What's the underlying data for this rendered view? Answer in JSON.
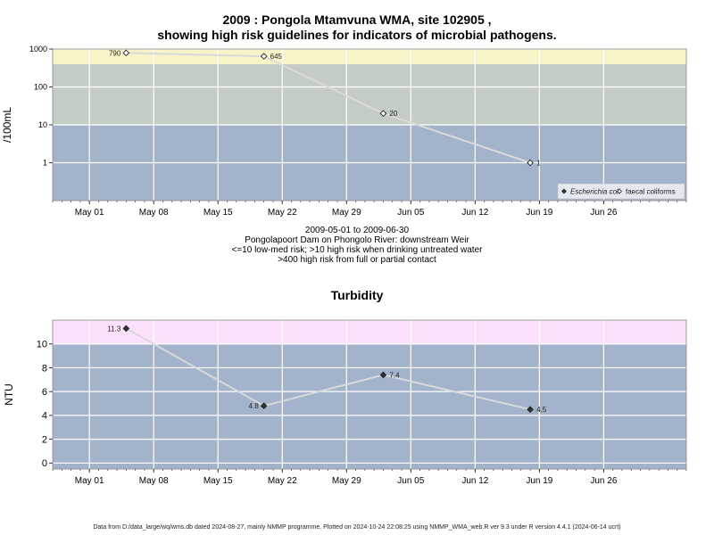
{
  "chart_data": [
    {
      "type": "line",
      "title_line1": "2009 : Pongola Mtamvuna WMA, site 102905 ,",
      "title_line2": "showing high risk guidelines for indicators of microbial pathogens.",
      "ylabel": "/100mL",
      "yscale": "log",
      "ylim": [
        0.1,
        1000
      ],
      "yticks": [
        1,
        10,
        100,
        1000
      ],
      "yticklabels": [
        "1",
        "10",
        "100",
        "1000"
      ],
      "xlim": [
        "2009-04-27",
        "2009-07-05"
      ],
      "xticks": [
        "2009-05-01",
        "2009-05-08",
        "2009-05-15",
        "2009-05-22",
        "2009-05-29",
        "2009-06-05",
        "2009-06-12",
        "2009-06-19",
        "2009-06-26"
      ],
      "xticklabels": [
        "May 01",
        "May 08",
        "May 15",
        "May 22",
        "May 29",
        "Jun 05",
        "Jun 12",
        "Jun 19",
        "Jun 26"
      ],
      "bands": [
        {
          "from": 0.1,
          "to": 10,
          "color": "#a3b3cc"
        },
        {
          "from": 10,
          "to": 400,
          "color": "#c4cdc4"
        },
        {
          "from": 400,
          "to": 1000,
          "color": "#f8f4c8"
        }
      ],
      "grid": true,
      "legend_position": "bottom-right",
      "series": [
        {
          "name": "faecal coliforms",
          "marker": "open-diamond",
          "x": [
            "2009-05-05",
            "2009-05-20",
            "2009-06-02",
            "2009-06-18"
          ],
          "values": [
            790,
            645,
            20,
            1
          ],
          "labels": [
            "790",
            "645",
            "20",
            "1"
          ]
        }
      ],
      "legend": [
        {
          "name": "Escherichia coli",
          "marker": "filled-diamond",
          "italic": true
        },
        {
          "name": "faecal coliforms",
          "marker": "open-diamond",
          "italic": false
        }
      ]
    },
    {
      "type": "line",
      "title": "Turbidity",
      "ylabel": "NTU",
      "yscale": "linear",
      "ylim": [
        -0.5,
        12
      ],
      "yticks": [
        0,
        2,
        4,
        6,
        8,
        10
      ],
      "yticklabels": [
        "0",
        "2",
        "4",
        "6",
        "8",
        "10"
      ],
      "xlim": [
        "2009-04-27",
        "2009-07-05"
      ],
      "xticks": [
        "2009-05-01",
        "2009-05-08",
        "2009-05-15",
        "2009-05-22",
        "2009-05-29",
        "2009-06-05",
        "2009-06-12",
        "2009-06-19",
        "2009-06-26"
      ],
      "xticklabels": [
        "May 01",
        "May 08",
        "May 15",
        "May 22",
        "May 29",
        "Jun 05",
        "Jun 12",
        "Jun 19",
        "Jun 26"
      ],
      "bands": [
        {
          "from": -0.5,
          "to": 10,
          "color": "#a3b3cc"
        },
        {
          "from": 10,
          "to": 12,
          "color": "#fbe0fb"
        }
      ],
      "grid": true,
      "series": [
        {
          "marker": "filled-diamond",
          "x": [
            "2009-05-05",
            "2009-05-20",
            "2009-06-02",
            "2009-06-18"
          ],
          "values": [
            11.3,
            4.8,
            7.4,
            4.5
          ],
          "labels": [
            "11.3",
            "4.8",
            "7.4",
            "4.5"
          ]
        }
      ]
    }
  ],
  "captions": {
    "date_range": "2009-05-01 to 2009-06-30",
    "site_name": "Pongolapoort Dam on Phongolo River: downstream Weir",
    "risk_line1": "<=10 low-med risk; >10 high risk when drinking untreated water",
    "risk_line2": ">400 high risk from full or partial contact"
  },
  "footer": "Data from D:/data_large/wq/wms.db dated 2024-08-27, mainly NMMP programme. Plotted on 2024-10-24 22:08:25 using NMMP_WMA_web.R ver 9.3 under R version 4.4.1 (2024-06-14 ucrt)"
}
